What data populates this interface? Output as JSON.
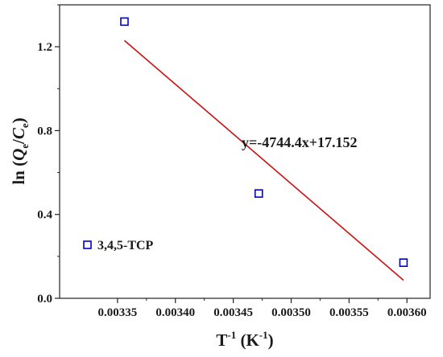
{
  "chart_data": {
    "type": "scatter",
    "title": "",
    "xlabel": "T-1 (K-1)",
    "xlabel_parts": {
      "base": "T",
      "base_sup": "-1",
      "unit_open": " (K",
      "unit_sup": "-1",
      "unit_close": ")"
    },
    "ylabel": "ln (Qe/Ce)",
    "ylabel_parts": {
      "prefix": "ln (",
      "q": "Q",
      "q_sub": "e",
      "slash": "/",
      "c": "C",
      "c_sub": "e",
      "suffix": ")"
    },
    "xlim": [
      0.0033,
      0.00362
    ],
    "ylim": [
      0.0,
      1.4
    ],
    "xticks": [
      0.00335,
      0.0034,
      0.00345,
      0.0035,
      0.00355,
      0.0036
    ],
    "xtick_labels": [
      "0.00335",
      "0.00340",
      "0.00345",
      "0.00350",
      "0.00355",
      "0.00360"
    ],
    "yticks": [
      0.0,
      0.4,
      0.8,
      1.2
    ],
    "ytick_labels": [
      "0.0",
      "0.4",
      "0.8",
      "1.2"
    ],
    "grid": false,
    "legend_position": "bottom-left",
    "series": [
      {
        "name": "3,4,5-TCP",
        "marker": "open-square",
        "color": "#0000cc",
        "x": [
          0.003356,
          0.003472,
          0.003597
        ],
        "y": [
          1.32,
          0.5,
          0.17
        ]
      }
    ],
    "fit_line": {
      "color": "#cc1111",
      "slope": -4744.4,
      "intercept": 17.152,
      "x_range": [
        0.003356,
        0.003597
      ],
      "equation": "y=-4744.4x+17.152"
    }
  }
}
